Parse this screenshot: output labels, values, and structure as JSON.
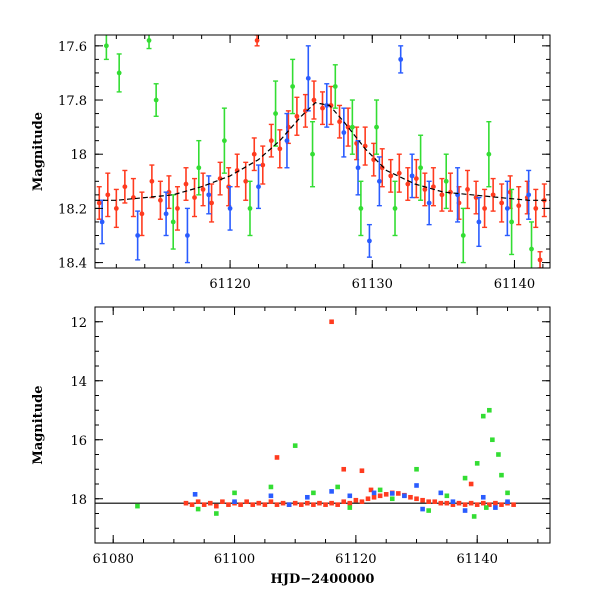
{
  "chart_data": [
    {
      "type": "scatter",
      "title": "",
      "xlabel": "",
      "ylabel": "Magnitude",
      "xlim": [
        61110.5,
        61142.5
      ],
      "ylim": [
        17.56,
        18.42
      ],
      "y_inverted": true,
      "x_ticks": [
        61120,
        61130,
        61140
      ],
      "y_ticks": [
        17.6,
        17.8,
        18,
        18.2,
        18.4
      ],
      "y_tick_labels": [
        "17.6",
        "17.8",
        "18",
        "18.2",
        "18.4"
      ],
      "legend": "none",
      "grid": false,
      "model_curve": {
        "color": "#000000",
        "style": "dashed",
        "points": [
          [
            61110.5,
            18.17
          ],
          [
            61112,
            18.17
          ],
          [
            61114,
            18.16
          ],
          [
            61116,
            18.15
          ],
          [
            61118,
            18.12
          ],
          [
            61120,
            18.08
          ],
          [
            61122,
            18.02
          ],
          [
            61123.5,
            17.95
          ],
          [
            61125,
            17.86
          ],
          [
            61126,
            17.81
          ],
          [
            61127,
            17.82
          ],
          [
            61128,
            17.88
          ],
          [
            61129.5,
            17.98
          ],
          [
            61131,
            18.06
          ],
          [
            61133,
            18.11
          ],
          [
            61135,
            18.14
          ],
          [
            61137,
            18.15
          ],
          [
            61139,
            18.16
          ],
          [
            61141,
            18.17
          ],
          [
            61142.5,
            18.17
          ]
        ]
      },
      "series": [
        {
          "color": "#ff3b1f",
          "points": [
            [
              61110.8,
              18.18,
              0.06
            ],
            [
              61111.4,
              18.15,
              0.08
            ],
            [
              61112.0,
              18.2,
              0.07
            ],
            [
              61112.6,
              18.12,
              0.06
            ],
            [
              61113.2,
              18.16,
              0.07
            ],
            [
              61113.8,
              18.22,
              0.08
            ],
            [
              61114.5,
              18.1,
              0.06
            ],
            [
              61115.1,
              18.17,
              0.07
            ],
            [
              61115.7,
              18.14,
              0.06
            ],
            [
              61116.3,
              18.2,
              0.08
            ],
            [
              61116.9,
              18.11,
              0.06
            ],
            [
              61117.5,
              18.16,
              0.07
            ],
            [
              61118.1,
              18.13,
              0.06
            ],
            [
              61118.7,
              18.18,
              0.07
            ],
            [
              61119.3,
              18.09,
              0.06
            ],
            [
              61119.9,
              18.12,
              0.07
            ],
            [
              61120.5,
              18.06,
              0.06
            ],
            [
              61121.1,
              18.1,
              0.07
            ],
            [
              61121.7,
              18.0,
              0.06
            ],
            [
              61122.3,
              18.04,
              0.07
            ],
            [
              61122.9,
              17.95,
              0.06
            ],
            [
              61123.5,
              17.98,
              0.07
            ],
            [
              61124.1,
              17.9,
              0.06
            ],
            [
              61124.7,
              17.86,
              0.07
            ],
            [
              61125.3,
              17.84,
              0.06
            ],
            [
              61125.9,
              17.8,
              0.07
            ],
            [
              61126.5,
              17.83,
              0.06
            ],
            [
              61127.1,
              17.82,
              0.07
            ],
            [
              61127.7,
              17.88,
              0.06
            ],
            [
              61128.3,
              17.9,
              0.07
            ],
            [
              61128.9,
              17.96,
              0.06
            ],
            [
              61129.5,
              17.97,
              0.07
            ],
            [
              61130.1,
              18.02,
              0.06
            ],
            [
              61130.7,
              18.05,
              0.07
            ],
            [
              61131.3,
              18.08,
              0.06
            ],
            [
              61131.9,
              18.07,
              0.07
            ],
            [
              61132.5,
              18.11,
              0.06
            ],
            [
              61133.1,
              18.09,
              0.07
            ],
            [
              61133.7,
              18.13,
              0.06
            ],
            [
              61134.3,
              18.12,
              0.07
            ],
            [
              61134.9,
              18.15,
              0.06
            ],
            [
              61135.5,
              18.14,
              0.07
            ],
            [
              61136.1,
              18.18,
              0.06
            ],
            [
              61136.7,
              18.13,
              0.07
            ],
            [
              61137.3,
              18.16,
              0.06
            ],
            [
              61137.9,
              18.2,
              0.07
            ],
            [
              61138.5,
              18.15,
              0.06
            ],
            [
              61139.1,
              18.18,
              0.07
            ],
            [
              61139.7,
              18.14,
              0.06
            ],
            [
              61140.3,
              18.19,
              0.07
            ],
            [
              61140.9,
              18.16,
              0.06
            ],
            [
              61141.5,
              18.2,
              0.07
            ],
            [
              61142.1,
              18.17,
              0.06
            ],
            [
              61121.9,
              17.58,
              0.02
            ],
            [
              61141.8,
              18.39,
              0.03
            ]
          ]
        },
        {
          "color": "#2a5cff",
          "points": [
            [
              61111.0,
              18.25,
              0.08
            ],
            [
              61113.5,
              18.3,
              0.09
            ],
            [
              61115.5,
              18.22,
              0.08
            ],
            [
              61117.0,
              18.3,
              0.1
            ],
            [
              61118.5,
              18.15,
              0.07
            ],
            [
              61120.0,
              18.2,
              0.08
            ],
            [
              61122.0,
              18.12,
              0.08
            ],
            [
              61124.0,
              17.95,
              0.1
            ],
            [
              61125.5,
              17.72,
              0.12
            ],
            [
              61126.8,
              17.82,
              0.08
            ],
            [
              61128.0,
              17.92,
              0.09
            ],
            [
              61129.0,
              18.05,
              0.1
            ],
            [
              61130.5,
              18.1,
              0.09
            ],
            [
              61132.0,
              17.65,
              0.05
            ],
            [
              61132.8,
              18.08,
              0.08
            ],
            [
              61134.0,
              18.18,
              0.08
            ],
            [
              61136.0,
              18.15,
              0.1
            ],
            [
              61137.5,
              18.25,
              0.09
            ],
            [
              61139.5,
              18.2,
              0.1
            ],
            [
              61141.0,
              18.15,
              0.09
            ],
            [
              61129.8,
              18.32,
              0.06
            ]
          ]
        },
        {
          "color": "#33dd33",
          "points": [
            [
              61111.3,
              17.6,
              0.05
            ],
            [
              61112.2,
              17.7,
              0.07
            ],
            [
              61114.8,
              17.8,
              0.06
            ],
            [
              61114.3,
              17.58,
              0.03
            ],
            [
              61116.0,
              18.25,
              0.1
            ],
            [
              61117.8,
              18.05,
              0.1
            ],
            [
              61119.6,
              17.95,
              0.12
            ],
            [
              61121.4,
              18.2,
              0.1
            ],
            [
              61123.2,
              17.85,
              0.12
            ],
            [
              61124.4,
              17.75,
              0.1
            ],
            [
              61125.8,
              18.0,
              0.12
            ],
            [
              61127.4,
              17.75,
              0.08
            ],
            [
              61128.6,
              17.9,
              0.1
            ],
            [
              61129.2,
              18.2,
              0.1
            ],
            [
              61130.3,
              17.9,
              0.1
            ],
            [
              61131.6,
              18.2,
              0.1
            ],
            [
              61133.4,
              18.05,
              0.12
            ],
            [
              61135.2,
              18.1,
              0.1
            ],
            [
              61136.4,
              18.3,
              0.1
            ],
            [
              61138.2,
              18.0,
              0.12
            ],
            [
              61139.8,
              18.25,
              0.12
            ],
            [
              61141.2,
              18.35,
              0.1
            ]
          ]
        }
      ]
    },
    {
      "type": "scatter",
      "title": "",
      "xlabel": "HJD−2400000",
      "ylabel": "Magnitude",
      "xlim": [
        61077,
        61152
      ],
      "ylim": [
        11.5,
        19.5
      ],
      "y_inverted": true,
      "x_ticks": [
        61080,
        61100,
        61120,
        61140
      ],
      "y_ticks": [
        12,
        14,
        16,
        18
      ],
      "y_tick_labels": [
        "12",
        "14",
        "16",
        "18"
      ],
      "legend": "none",
      "grid": false,
      "reference_line": {
        "y": 18.15,
        "color": "#000000"
      },
      "series": [
        {
          "color": "#ff3b1f",
          "points": [
            [
              61092,
              18.15
            ],
            [
              61093,
              18.2
            ],
            [
              61094,
              18.1
            ],
            [
              61095,
              18.2
            ],
            [
              61096,
              18.15
            ],
            [
              61097,
              18.25
            ],
            [
              61098,
              18.1
            ],
            [
              61099,
              18.2
            ],
            [
              61100,
              18.15
            ],
            [
              61101,
              18.2
            ],
            [
              61102,
              18.1
            ],
            [
              61103,
              18.2
            ],
            [
              61104,
              18.15
            ],
            [
              61105,
              18.2
            ],
            [
              61106,
              18.1
            ],
            [
              61107,
              18.2
            ],
            [
              61108,
              18.15
            ],
            [
              61109,
              18.2
            ],
            [
              61110,
              18.15
            ],
            [
              61111,
              18.2
            ],
            [
              61112,
              18.15
            ],
            [
              61113,
              18.2
            ],
            [
              61114,
              18.15
            ],
            [
              61115,
              18.2
            ],
            [
              61116,
              18.15
            ],
            [
              61117,
              18.2
            ],
            [
              61118,
              18.1
            ],
            [
              61119,
              18.15
            ],
            [
              61120,
              18.05
            ],
            [
              61121,
              18.1
            ],
            [
              61122,
              18.0
            ],
            [
              61123,
              17.95
            ],
            [
              61124,
              17.9
            ],
            [
              61125,
              17.85
            ],
            [
              61126,
              17.8
            ],
            [
              61127,
              17.82
            ],
            [
              61128,
              17.88
            ],
            [
              61129,
              17.95
            ],
            [
              61130,
              18.0
            ],
            [
              61131,
              18.05
            ],
            [
              61132,
              18.1
            ],
            [
              61133,
              18.1
            ],
            [
              61134,
              18.15
            ],
            [
              61135,
              18.15
            ],
            [
              61136,
              18.2
            ],
            [
              61137,
              18.15
            ],
            [
              61138,
              18.2
            ],
            [
              61139,
              18.15
            ],
            [
              61140,
              18.2
            ],
            [
              61141,
              18.15
            ],
            [
              61142,
              18.2
            ],
            [
              61143,
              18.15
            ],
            [
              61144,
              18.2
            ],
            [
              61145,
              18.15
            ],
            [
              61146,
              18.2
            ],
            [
              61116,
              12.0
            ],
            [
              61107,
              16.6
            ],
            [
              61118,
              17.0
            ],
            [
              61121,
              17.05
            ],
            [
              61122.5,
              17.7
            ],
            [
              61139,
              17.5
            ]
          ]
        },
        {
          "color": "#2a5cff",
          "points": [
            [
              61093.5,
              17.85
            ],
            [
              61100,
              18.1
            ],
            [
              61106,
              17.9
            ],
            [
              61109,
              18.2
            ],
            [
              61112,
              17.95
            ],
            [
              61116,
              17.75
            ],
            [
              61119,
              17.9
            ],
            [
              61123,
              17.8
            ],
            [
              61126,
              17.82
            ],
            [
              61128,
              17.9
            ],
            [
              61130,
              17.55
            ],
            [
              61131,
              18.35
            ],
            [
              61134,
              17.8
            ],
            [
              61136,
              18.1
            ],
            [
              61138,
              18.4
            ],
            [
              61141,
              17.95
            ],
            [
              61143,
              18.3
            ],
            [
              61145,
              18.1
            ]
          ]
        },
        {
          "color": "#33dd33",
          "points": [
            [
              61084,
              18.25
            ],
            [
              61094,
              18.35
            ],
            [
              61097,
              18.5
            ],
            [
              61100,
              17.8
            ],
            [
              61106,
              17.6
            ],
            [
              61110,
              16.2
            ],
            [
              61113,
              17.8
            ],
            [
              61117,
              17.6
            ],
            [
              61119,
              18.3
            ],
            [
              61124,
              17.7
            ],
            [
              61126,
              18.0
            ],
            [
              61130,
              17.0
            ],
            [
              61132,
              18.4
            ],
            [
              61135,
              17.9
            ],
            [
              61138,
              17.3
            ],
            [
              61140,
              16.8
            ],
            [
              61141,
              15.2
            ],
            [
              61142,
              15.0
            ],
            [
              61142.5,
              16.0
            ],
            [
              61143.5,
              16.5
            ],
            [
              61144,
              17.2
            ],
            [
              61145,
              17.8
            ],
            [
              61139.5,
              18.6
            ],
            [
              61141.5,
              18.3
            ]
          ]
        }
      ]
    }
  ]
}
